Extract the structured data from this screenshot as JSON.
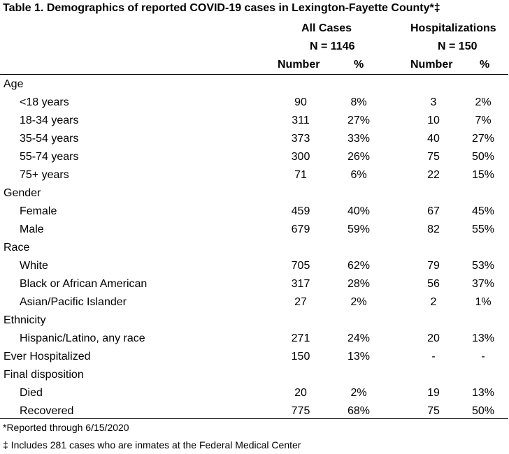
{
  "title": "Table 1. Demographics of reported COVID-19 cases in Lexington-Fayette County*‡",
  "header": {
    "all_cases": "All Cases",
    "all_n": "N = 1146",
    "hosp": "Hospitalizations",
    "hosp_n": "N = 150",
    "number_1": "Number",
    "pct_1": "%",
    "number_2": "Number",
    "pct_2": "%"
  },
  "rows": [
    {
      "label": "Age",
      "cells": [
        "",
        "",
        "",
        ""
      ]
    },
    {
      "label": "<18 years",
      "cells": [
        "90",
        "8%",
        "3",
        "2%"
      ]
    },
    {
      "label": "18-34 years",
      "cells": [
        "311",
        "27%",
        "10",
        "7%"
      ]
    },
    {
      "label": "35-54 years",
      "cells": [
        "373",
        "33%",
        "40",
        "27%"
      ]
    },
    {
      "label": "55-74 years",
      "cells": [
        "300",
        "26%",
        "75",
        "50%"
      ]
    },
    {
      "label": "75+ years",
      "cells": [
        "71",
        "6%",
        "22",
        "15%"
      ]
    },
    {
      "label": "Gender",
      "cells": [
        "",
        "",
        "",
        ""
      ]
    },
    {
      "label": "Female",
      "cells": [
        "459",
        "40%",
        "67",
        "45%"
      ]
    },
    {
      "label": "Male",
      "cells": [
        "679",
        "59%",
        "82",
        "55%"
      ]
    },
    {
      "label": "Race",
      "cells": [
        "",
        "",
        "",
        ""
      ]
    },
    {
      "label": "White",
      "cells": [
        "705",
        "62%",
        "79",
        "53%"
      ]
    },
    {
      "label": "Black or African American",
      "cells": [
        "317",
        "28%",
        "56",
        "37%"
      ]
    },
    {
      "label": "Asian/Pacific Islander",
      "cells": [
        "27",
        "2%",
        "2",
        "1%"
      ]
    },
    {
      "label": "Ethnicity",
      "cells": [
        "",
        "",
        "",
        ""
      ]
    },
    {
      "label": "Hispanic/Latino, any race",
      "cells": [
        "271",
        "24%",
        "20",
        "13%"
      ]
    },
    {
      "label": "Ever Hospitalized",
      "cells": [
        "150",
        "13%",
        "-",
        "-"
      ]
    },
    {
      "label": "Final disposition",
      "cells": [
        "",
        "",
        "",
        ""
      ]
    },
    {
      "label": "Died",
      "cells": [
        "20",
        "2%",
        "19",
        "13%"
      ]
    },
    {
      "label": "Recovered",
      "cells": [
        "775",
        "68%",
        "75",
        "50%"
      ]
    }
  ],
  "footnotes": [
    "*Reported through 6/15/2020",
    "‡ Includes 281 cases who are inmates at the Federal Medical Center"
  ]
}
